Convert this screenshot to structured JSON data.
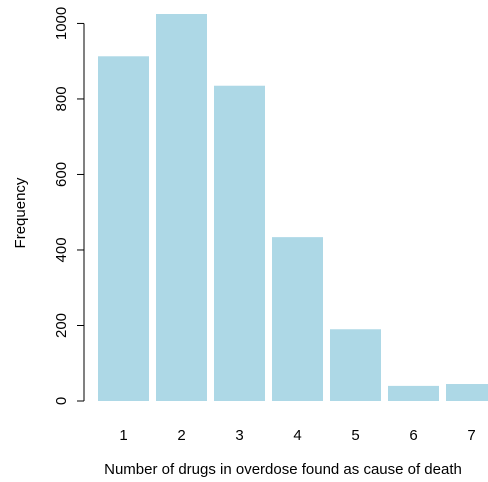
{
  "chart_data": {
    "type": "bar",
    "categories": [
      "1",
      "2",
      "3",
      "4",
      "5",
      "6",
      "7"
    ],
    "values": [
      913,
      1025,
      835,
      434,
      190,
      40,
      45
    ],
    "xlabel": "Number of drugs in overdose found as cause of death",
    "ylabel": "Frequency",
    "ylim": [
      0,
      1025
    ],
    "yticks": [
      0,
      200,
      400,
      600,
      800,
      1000
    ],
    "bar_color": "#add8e6",
    "grid": false,
    "legend": "none"
  }
}
